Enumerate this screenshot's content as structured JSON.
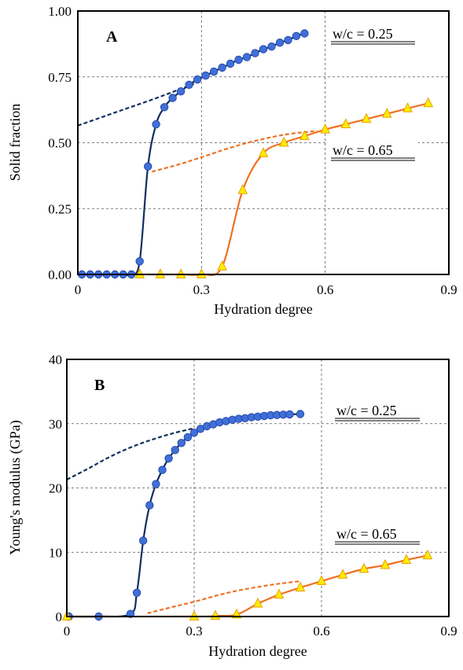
{
  "chart_data": [
    {
      "type": "line",
      "panel_label": "A",
      "xlabel": "Hydration degree",
      "ylabel": "Solid fraction",
      "xlim": [
        0,
        0.9
      ],
      "ylim": [
        0,
        1
      ],
      "x_ticks": [
        "0",
        "0.3",
        "0.6",
        "0.9"
      ],
      "y_ticks": [
        "0.00",
        "0.25",
        "0.50",
        "0.75",
        "1.00"
      ],
      "grid": true,
      "series": [
        {
          "name": "w/c = 0.25",
          "color": "#0f2f5f",
          "marker": "circle",
          "marker_color": "#3f6fd8",
          "points": [
            [
              0.01,
              0
            ],
            [
              0.03,
              0
            ],
            [
              0.05,
              0
            ],
            [
              0.07,
              0
            ],
            [
              0.09,
              0
            ],
            [
              0.11,
              0
            ],
            [
              0.13,
              0
            ],
            [
              0.15,
              0.05
            ],
            [
              0.17,
              0.41
            ],
            [
              0.19,
              0.57
            ],
            [
              0.21,
              0.635
            ],
            [
              0.23,
              0.67
            ],
            [
              0.25,
              0.695
            ],
            [
              0.27,
              0.72
            ],
            [
              0.29,
              0.74
            ],
            [
              0.31,
              0.755
            ],
            [
              0.33,
              0.77
            ],
            [
              0.35,
              0.785
            ],
            [
              0.37,
              0.8
            ],
            [
              0.39,
              0.815
            ],
            [
              0.41,
              0.825
            ],
            [
              0.43,
              0.84
            ],
            [
              0.45,
              0.855
            ],
            [
              0.47,
              0.865
            ],
            [
              0.49,
              0.88
            ],
            [
              0.51,
              0.89
            ],
            [
              0.53,
              0.905
            ],
            [
              0.55,
              0.915
            ]
          ],
          "extrapolation": [
            [
              0,
              0.565
            ],
            [
              0.1,
              0.62
            ],
            [
              0.2,
              0.675
            ],
            [
              0.3,
              0.735
            ]
          ]
        },
        {
          "name": "w/c = 0.65",
          "color": "#f07020",
          "marker": "triangle",
          "marker_color": "#ffee00",
          "points": [
            [
              0.15,
              0
            ],
            [
              0.2,
              0
            ],
            [
              0.25,
              0
            ],
            [
              0.3,
              0
            ],
            [
              0.35,
              0.03
            ],
            [
              0.4,
              0.32
            ],
            [
              0.45,
              0.46
            ],
            [
              0.5,
              0.5
            ],
            [
              0.55,
              0.525
            ],
            [
              0.6,
              0.55
            ],
            [
              0.65,
              0.57
            ],
            [
              0.7,
              0.59
            ],
            [
              0.75,
              0.61
            ],
            [
              0.8,
              0.63
            ],
            [
              0.85,
              0.65
            ]
          ],
          "extrapolation": [
            [
              0.18,
              0.39
            ],
            [
              0.25,
              0.42
            ],
            [
              0.3,
              0.445
            ],
            [
              0.4,
              0.495
            ],
            [
              0.5,
              0.53
            ],
            [
              0.58,
              0.545
            ]
          ]
        }
      ],
      "annotations": [
        "w/c = 0.25",
        "w/c = 0.65"
      ]
    },
    {
      "type": "line",
      "panel_label": "B",
      "xlabel": "Hydration degree",
      "ylabel": "Young's modulus (GPa)",
      "xlim": [
        0,
        0.9
      ],
      "ylim": [
        0,
        40
      ],
      "x_ticks": [
        "0",
        "0.3",
        "0.6",
        "0.9"
      ],
      "y_ticks": [
        "0",
        "10",
        "20",
        "30",
        "40"
      ],
      "grid": true,
      "series": [
        {
          "name": "w/c = 0.25",
          "color": "#0f2f5f",
          "marker": "circle",
          "marker_color": "#3f6fd8",
          "points": [
            [
              0.005,
              0
            ],
            [
              0.075,
              0
            ],
            [
              0.15,
              0.4
            ],
            [
              0.165,
              3.7
            ],
            [
              0.18,
              11.8
            ],
            [
              0.195,
              17.3
            ],
            [
              0.21,
              20.6
            ],
            [
              0.225,
              22.8
            ],
            [
              0.24,
              24.6
            ],
            [
              0.255,
              25.9
            ],
            [
              0.27,
              27
            ],
            [
              0.285,
              27.9
            ],
            [
              0.3,
              28.6
            ],
            [
              0.315,
              29.2
            ],
            [
              0.33,
              29.6
            ],
            [
              0.345,
              29.9
            ],
            [
              0.36,
              30.2
            ],
            [
              0.375,
              30.4
            ],
            [
              0.39,
              30.6
            ],
            [
              0.405,
              30.75
            ],
            [
              0.42,
              30.85
            ],
            [
              0.435,
              31
            ],
            [
              0.45,
              31.1
            ],
            [
              0.465,
              31.2
            ],
            [
              0.48,
              31.3
            ],
            [
              0.495,
              31.35
            ],
            [
              0.51,
              31.4
            ],
            [
              0.525,
              31.45
            ],
            [
              0.55,
              31.5
            ]
          ],
          "extrapolation": [
            [
              0,
              21.3
            ],
            [
              0.05,
              23
            ],
            [
              0.1,
              24.8
            ],
            [
              0.15,
              26.3
            ],
            [
              0.2,
              27.5
            ],
            [
              0.25,
              28.5
            ],
            [
              0.3,
              29.3
            ]
          ]
        },
        {
          "name": "w/c = 0.65",
          "color": "#f07020",
          "marker": "triangle",
          "marker_color": "#ffee00",
          "points": [
            [
              0,
              0
            ],
            [
              0.3,
              0
            ],
            [
              0.35,
              0.1
            ],
            [
              0.4,
              0.3
            ],
            [
              0.45,
              2
            ],
            [
              0.5,
              3.4
            ],
            [
              0.55,
              4.5
            ],
            [
              0.6,
              5.5
            ],
            [
              0.65,
              6.5
            ],
            [
              0.7,
              7.4
            ],
            [
              0.75,
              8
            ],
            [
              0.8,
              8.8
            ],
            [
              0.85,
              9.5
            ]
          ],
          "extrapolation": [
            [
              0.19,
              0.5
            ],
            [
              0.25,
              1.5
            ],
            [
              0.3,
              2.3
            ],
            [
              0.35,
              3.2
            ],
            [
              0.4,
              4
            ],
            [
              0.45,
              4.6
            ],
            [
              0.5,
              5.1
            ],
            [
              0.55,
              5.5
            ]
          ]
        }
      ],
      "annotations": [
        "w/c = 0.25",
        "w/c = 0.65"
      ]
    }
  ]
}
